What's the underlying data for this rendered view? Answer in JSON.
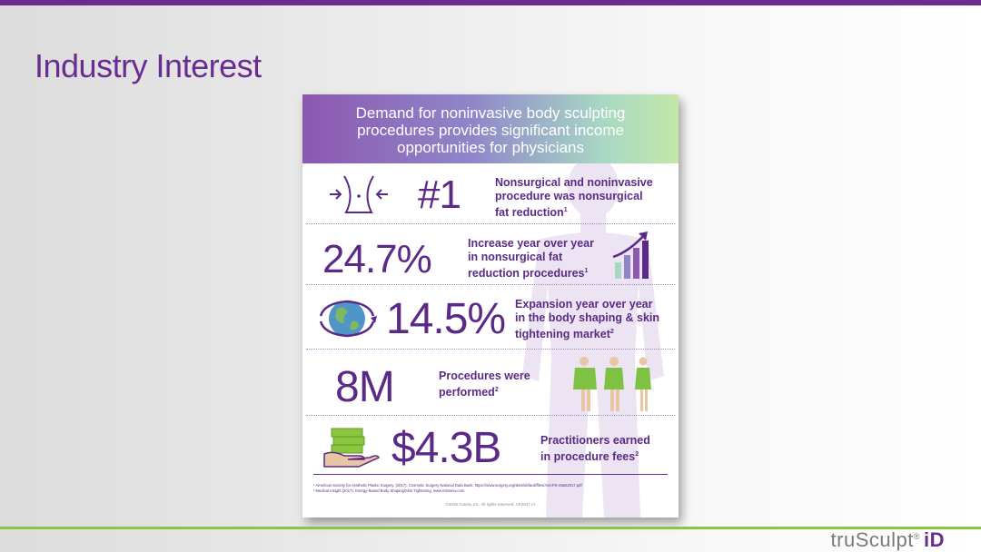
{
  "slide": {
    "title": "Industry Interest",
    "brand_main": "truSculpt",
    "brand_mark": "®",
    "brand_suffix": "iD",
    "colors": {
      "accent": "#6a2c91",
      "rule": "#8cc63f"
    }
  },
  "poster": {
    "header_lines": [
      "Demand for noninvasive body sculpting",
      "procedures provides significant income",
      "opportunities for physicians"
    ],
    "stats": [
      {
        "value": "#1",
        "icon": "waist-icon",
        "desc": [
          "Nonsurgical and noninvasive",
          "procedure was nonsurgical",
          "fat reduction"
        ],
        "ref": "1"
      },
      {
        "value": "24.7%",
        "icon": "bar-growth-icon",
        "desc": [
          "Increase year over year",
          "in nonsurgical fat",
          "reduction procedures"
        ],
        "ref": "1"
      },
      {
        "value": "14.5%",
        "icon": "globe-icon",
        "desc": [
          "Expansion year over year",
          "in the body shaping & skin",
          "tightening market"
        ],
        "ref": "2"
      },
      {
        "value": "8M",
        "icon": "body-figures-icon",
        "desc": [
          "Procedures were",
          "performed"
        ],
        "ref": "2"
      },
      {
        "value": "$4.3B",
        "icon": "money-hand-icon",
        "desc": [
          "Practitioners earned",
          "in procedure fees"
        ],
        "ref": "2"
      }
    ],
    "footnotes": [
      "¹ American Society for Aesthetic Plastic Surgery. (2017). Cosmetic Surgery National Data Bank. https://www.surgery.org/sites/default/files/ASAPS-Stats2017.pdf",
      "² Medical Insight (2017). Energy-Based Body Shaping/Skin Tightening. www.mtimesv.com"
    ],
    "copyright": "©2018 Cutera, Inc. All rights reserved. AP2047 rA"
  }
}
